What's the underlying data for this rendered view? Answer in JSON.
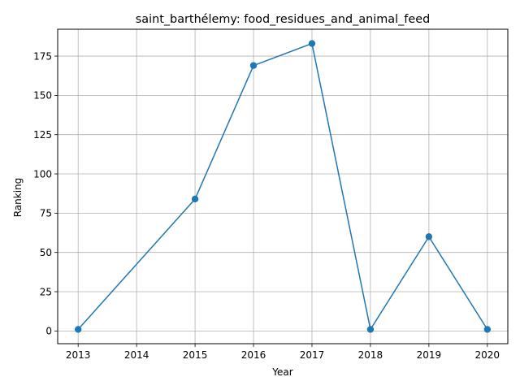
{
  "chart_data": {
    "type": "line",
    "title": "saint_barthélemy: food_residues_and_animal_feed",
    "xlabel": "Year",
    "ylabel": "Ranking",
    "x": [
      2013,
      2015,
      2016,
      2017,
      2018,
      2019,
      2020
    ],
    "series": [
      {
        "values": [
          1,
          84,
          169,
          183,
          1,
          60,
          1
        ],
        "color": "#1f77b4",
        "marker": "circle"
      }
    ],
    "xticks": [
      2013,
      2014,
      2015,
      2016,
      2017,
      2018,
      2019,
      2020
    ],
    "yticks": [
      0,
      25,
      50,
      75,
      100,
      125,
      150,
      175
    ],
    "xlim": [
      2012.65,
      2020.35
    ],
    "ylim": [
      -8.1,
      192.1
    ],
    "grid": true,
    "legend": "none"
  }
}
